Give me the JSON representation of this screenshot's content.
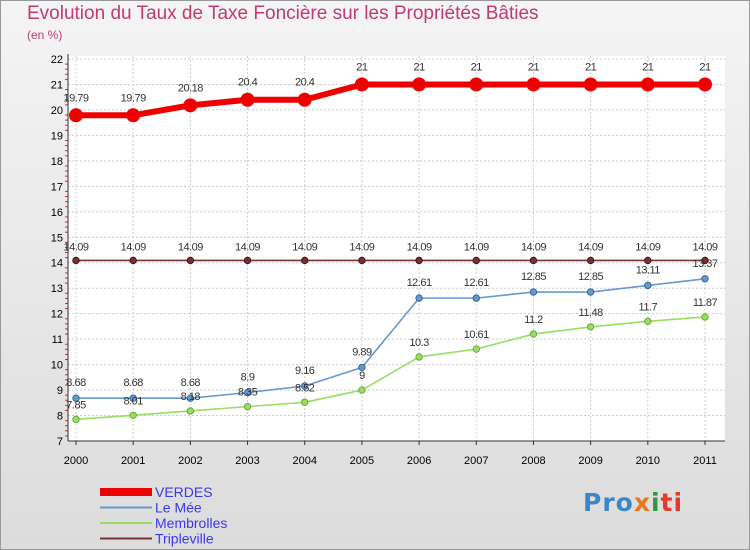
{
  "title": "Evolution du Taux de Taxe Foncière sur les Propriétés Bâties",
  "subtitle": "(en %)",
  "logo": "Proxiti",
  "chart_data": {
    "type": "line",
    "title": "Evolution du Taux de Taxe Foncière sur les Propriétés Bâties",
    "ylabel": "(en %)",
    "xlabel": "",
    "categories": [
      "2000",
      "2001",
      "2002",
      "2003",
      "2004",
      "2005",
      "2006",
      "2007",
      "2008",
      "2009",
      "2010",
      "2011"
    ],
    "ylim": [
      7,
      22
    ],
    "yticks": [
      "7",
      "8",
      "9",
      "10",
      "11",
      "12",
      "13",
      "14",
      "15",
      "16",
      "17",
      "18",
      "19",
      "20",
      "21",
      "22"
    ],
    "grid": true,
    "legend_position": "bottom-left",
    "series": [
      {
        "name": "VERDES",
        "color": "#ee0000",
        "values": [
          19.79,
          19.79,
          20.18,
          20.4,
          20.4,
          21,
          21,
          21,
          21,
          21,
          21,
          21
        ],
        "labels": [
          "19.79",
          "19.79",
          "20.18",
          "20.4",
          "20.4",
          "21",
          "21",
          "21",
          "21",
          "21",
          "21",
          "21"
        ]
      },
      {
        "name": "Le Mée",
        "color": "#6699cc",
        "values": [
          8.68,
          8.68,
          8.68,
          8.9,
          9.16,
          9.89,
          12.61,
          12.61,
          12.85,
          12.85,
          13.11,
          13.37
        ],
        "labels": [
          "8.68",
          "8.68",
          "8.68",
          "8.9",
          "9.16",
          "9.89",
          "12.61",
          "12.61",
          "12.85",
          "12.85",
          "13.11",
          "13.37"
        ]
      },
      {
        "name": "Membrolles",
        "color": "#99dd66",
        "values": [
          7.85,
          8.01,
          8.18,
          8.35,
          8.52,
          9,
          10.3,
          10.61,
          11.2,
          11.48,
          11.7,
          11.87
        ],
        "labels": [
          "7.85",
          "8.01",
          "8.18",
          "8.35",
          "8.52",
          "9",
          "10.3",
          "10.61",
          "11.2",
          "11.48",
          "11.7",
          "11.87"
        ]
      },
      {
        "name": "Tripleville",
        "color": "#773333",
        "values": [
          14.09,
          14.09,
          14.09,
          14.09,
          14.09,
          14.09,
          14.09,
          14.09,
          14.09,
          14.09,
          14.09,
          14.09
        ],
        "labels": [
          "14.09",
          "14.09",
          "14.09",
          "14.09",
          "14.09",
          "14.09",
          "14.09",
          "14.09",
          "14.09",
          "14.09",
          "14.09",
          "14.09"
        ]
      }
    ]
  }
}
